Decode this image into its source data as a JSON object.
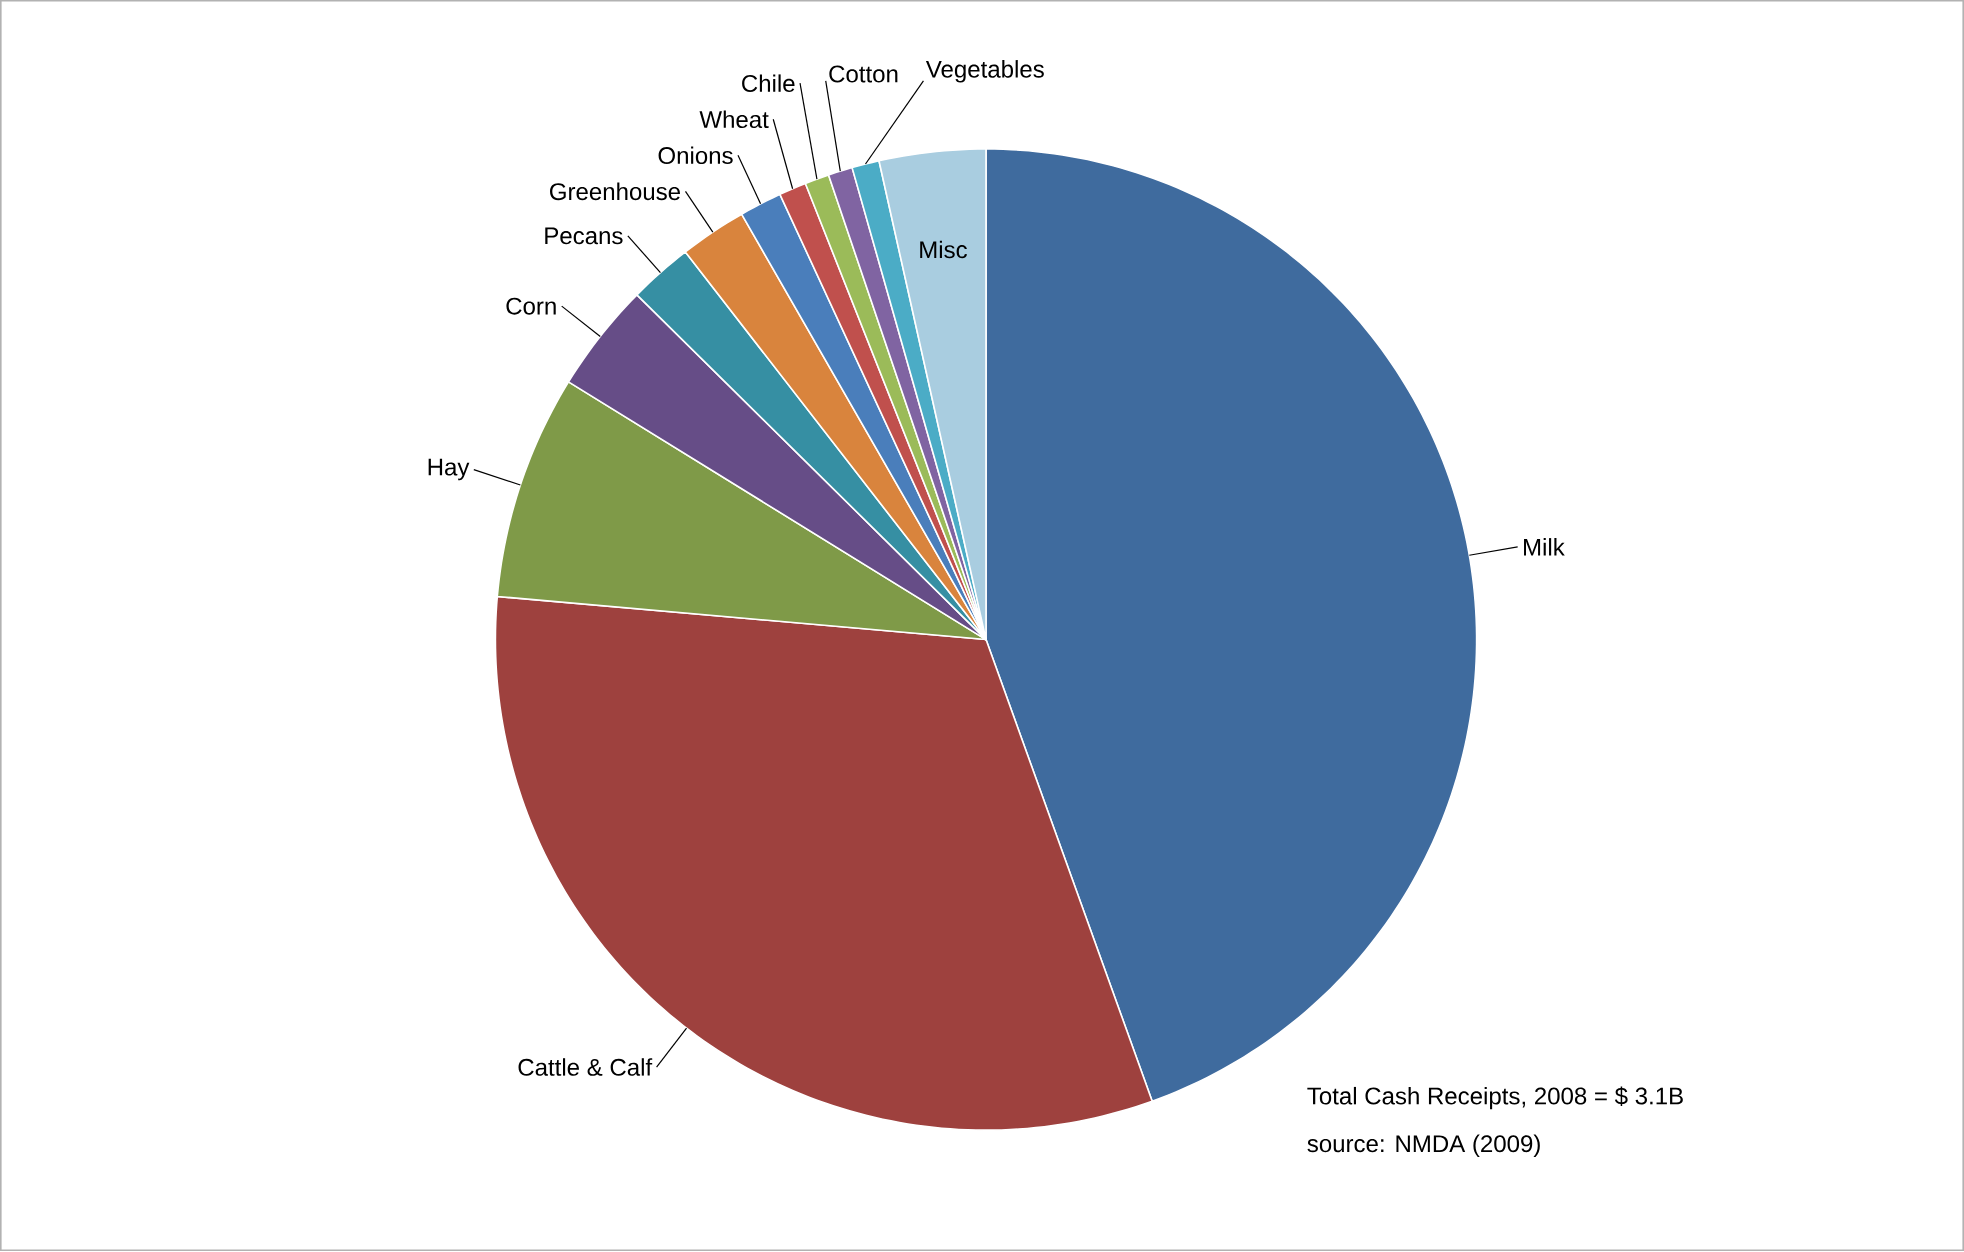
{
  "chart_data": {
    "type": "pie",
    "categories": [
      "Milk",
      "Cattle & Calf",
      "Hay",
      "Corn",
      "Pecans",
      "Greenhouse",
      "Onions",
      "Wheat",
      "Chile",
      "Cotton",
      "Vegetables",
      "Misc"
    ],
    "values": [
      44.5,
      31.9,
      7.4,
      3.6,
      2.1,
      2.2,
      1.4,
      0.9,
      0.8,
      0.8,
      0.9,
      3.5
    ],
    "colors": [
      "#3f6b9e",
      "#9e413e",
      "#7f9a48",
      "#664d87",
      "#368fa3",
      "#d9843d",
      "#4a7ebb",
      "#c0504d",
      "#9bbb59",
      "#8064a2",
      "#4bacc6",
      "#a9cde0"
    ],
    "annotations": [
      "Total Cash Receipts, 2008 = $ 3.1B",
      "source: NMDA (2009)"
    ]
  }
}
